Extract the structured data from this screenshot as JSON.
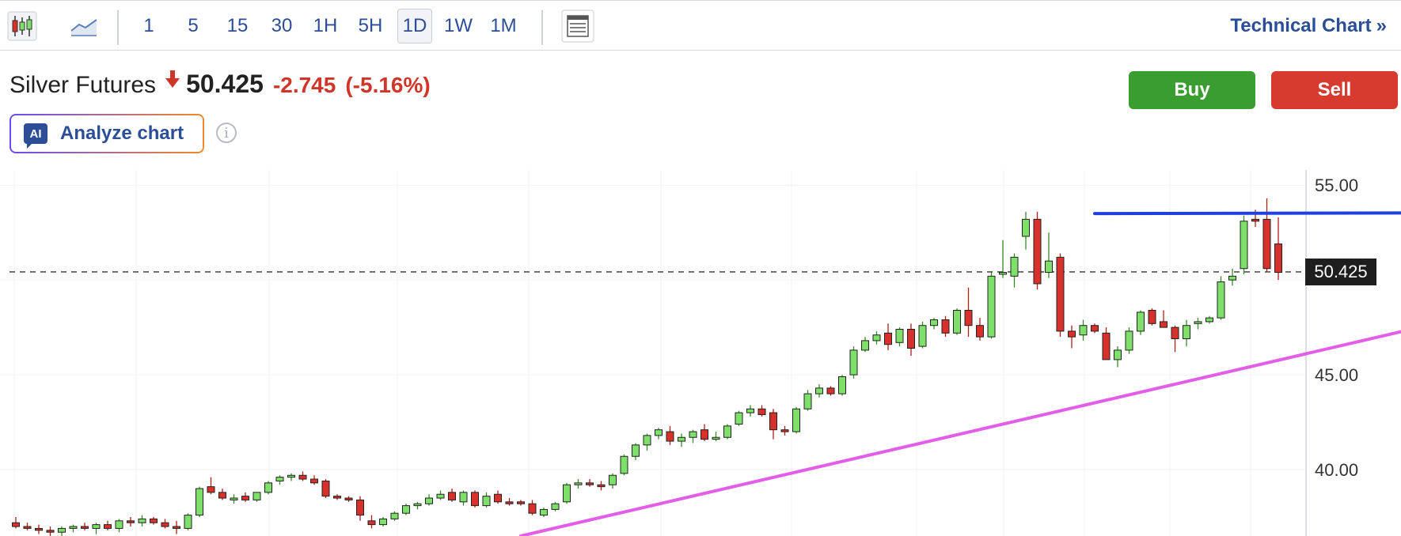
{
  "toolbar": {
    "icons": [
      "candlestick-chart-icon",
      "area-chart-icon",
      "layout-icon"
    ],
    "intervals": [
      "1",
      "5",
      "15",
      "30",
      "1H",
      "5H",
      "1D",
      "1W",
      "1M"
    ],
    "active_interval": "1D",
    "technical_link": "Technical Chart",
    "technical_chevron": "»"
  },
  "instrument": {
    "name": "Silver Futures",
    "price": "50.425",
    "change": "-2.745",
    "change_pct": "(-5.16%)",
    "direction": "down"
  },
  "actions": {
    "buy": "Buy",
    "sell": "Sell"
  },
  "analyze": {
    "badge": "AI",
    "label": "Analyze chart",
    "info": "i"
  },
  "colors": {
    "up": "#7ee06a",
    "down": "#d8302a",
    "resistance_line": "#1f3fe0",
    "support_line": "#e35ee8",
    "buy": "#3a9d2f",
    "sell": "#d73a2e",
    "link": "#2b4e96"
  },
  "chart_data": {
    "type": "candlestick",
    "interval": "1D",
    "yticks": [
      "55.00",
      "45.00",
      "40.00"
    ],
    "ylim": [
      36.5,
      55.8
    ],
    "last_price_label": "50.425",
    "grid": true,
    "trendlines": [
      {
        "name": "resistance",
        "color": "#1f3fe0",
        "start": [
          94,
          53.5
        ],
        "end": [
          136,
          53.55
        ]
      },
      {
        "name": "support",
        "color": "#e35ee8",
        "start": [
          44,
          36.5
        ],
        "end": [
          133,
          49.0
        ]
      }
    ],
    "candles": [
      [
        37.2,
        37.5,
        36.9,
        37.0
      ],
      [
        37.0,
        37.2,
        36.8,
        36.9
      ],
      [
        36.9,
        37.1,
        36.6,
        36.8
      ],
      [
        36.8,
        37.0,
        36.5,
        36.7
      ],
      [
        36.7,
        37.0,
        36.4,
        36.9
      ],
      [
        36.9,
        37.1,
        36.7,
        37.0
      ],
      [
        37.0,
        37.2,
        36.8,
        36.9
      ],
      [
        36.9,
        37.2,
        36.6,
        37.1
      ],
      [
        37.1,
        37.3,
        36.8,
        36.9
      ],
      [
        36.9,
        37.4,
        36.7,
        37.3
      ],
      [
        37.3,
        37.5,
        37.0,
        37.2
      ],
      [
        37.2,
        37.6,
        37.0,
        37.4
      ],
      [
        37.4,
        37.5,
        37.1,
        37.2
      ],
      [
        37.2,
        37.4,
        36.9,
        37.0
      ],
      [
        37.0,
        37.3,
        36.6,
        36.9
      ],
      [
        36.9,
        37.7,
        36.8,
        37.6
      ],
      [
        37.6,
        39.1,
        37.5,
        39.0
      ],
      [
        39.1,
        39.6,
        38.7,
        38.8
      ],
      [
        38.8,
        39.0,
        38.4,
        38.5
      ],
      [
        38.4,
        38.7,
        38.2,
        38.5
      ],
      [
        38.6,
        38.8,
        38.3,
        38.4
      ],
      [
        38.4,
        38.8,
        38.3,
        38.8
      ],
      [
        38.8,
        39.4,
        38.7,
        39.3
      ],
      [
        39.4,
        39.7,
        39.2,
        39.6
      ],
      [
        39.6,
        39.8,
        39.4,
        39.7
      ],
      [
        39.7,
        39.9,
        39.4,
        39.5
      ],
      [
        39.5,
        39.7,
        39.2,
        39.3
      ],
      [
        39.4,
        39.5,
        38.5,
        38.6
      ],
      [
        38.6,
        38.7,
        38.4,
        38.5
      ],
      [
        38.5,
        38.6,
        38.3,
        38.4
      ],
      [
        38.4,
        38.6,
        37.3,
        37.6
      ],
      [
        37.3,
        37.6,
        36.9,
        37.1
      ],
      [
        37.1,
        37.5,
        37.0,
        37.4
      ],
      [
        37.4,
        37.8,
        37.3,
        37.7
      ],
      [
        37.7,
        38.2,
        37.6,
        38.1
      ],
      [
        38.1,
        38.3,
        37.9,
        38.2
      ],
      [
        38.2,
        38.7,
        38.1,
        38.5
      ],
      [
        38.5,
        38.9,
        38.4,
        38.7
      ],
      [
        38.8,
        39.0,
        38.3,
        38.4
      ],
      [
        38.3,
        38.9,
        38.1,
        38.8
      ],
      [
        38.8,
        38.9,
        38.0,
        38.1
      ],
      [
        38.1,
        38.8,
        38.0,
        38.6
      ],
      [
        38.7,
        38.9,
        38.2,
        38.3
      ],
      [
        38.3,
        38.5,
        38.1,
        38.2
      ],
      [
        38.3,
        38.4,
        38.1,
        38.2
      ],
      [
        38.2,
        38.4,
        37.6,
        37.7
      ],
      [
        37.6,
        38.0,
        37.5,
        37.9
      ],
      [
        37.9,
        38.3,
        37.8,
        38.2
      ],
      [
        38.3,
        39.3,
        38.2,
        39.2
      ],
      [
        39.2,
        39.5,
        39.0,
        39.3
      ],
      [
        39.3,
        39.5,
        39.1,
        39.2
      ],
      [
        39.2,
        39.4,
        38.9,
        39.1
      ],
      [
        39.2,
        39.8,
        39.0,
        39.7
      ],
      [
        39.8,
        40.8,
        39.7,
        40.7
      ],
      [
        40.7,
        41.4,
        40.5,
        41.3
      ],
      [
        41.3,
        41.9,
        41.0,
        41.8
      ],
      [
        41.8,
        42.2,
        41.6,
        42.1
      ],
      [
        42.0,
        42.3,
        41.3,
        41.5
      ],
      [
        41.5,
        41.9,
        41.2,
        41.7
      ],
      [
        41.7,
        42.1,
        41.4,
        42.0
      ],
      [
        42.1,
        42.4,
        41.5,
        41.6
      ],
      [
        41.6,
        42.0,
        41.5,
        41.7
      ],
      [
        41.7,
        42.4,
        41.6,
        42.3
      ],
      [
        42.4,
        43.1,
        42.3,
        43.0
      ],
      [
        43.0,
        43.4,
        42.8,
        43.2
      ],
      [
        43.2,
        43.4,
        42.8,
        42.9
      ],
      [
        43.0,
        43.2,
        41.6,
        42.1
      ],
      [
        42.1,
        42.3,
        41.8,
        42.0
      ],
      [
        42.0,
        43.3,
        41.9,
        43.2
      ],
      [
        43.2,
        44.2,
        43.1,
        44.0
      ],
      [
        44.0,
        44.5,
        43.8,
        44.3
      ],
      [
        44.3,
        44.4,
        43.9,
        44.0
      ],
      [
        44.0,
        45.0,
        43.9,
        44.9
      ],
      [
        45.0,
        46.5,
        44.8,
        46.3
      ],
      [
        46.3,
        47.0,
        46.2,
        46.8
      ],
      [
        46.8,
        47.3,
        46.6,
        47.1
      ],
      [
        47.2,
        47.7,
        46.3,
        46.6
      ],
      [
        46.7,
        47.5,
        46.5,
        47.4
      ],
      [
        47.4,
        47.7,
        46.0,
        46.4
      ],
      [
        46.5,
        47.8,
        46.4,
        47.6
      ],
      [
        47.6,
        48.0,
        47.4,
        47.9
      ],
      [
        47.9,
        48.1,
        47.0,
        47.2
      ],
      [
        47.2,
        48.5,
        47.1,
        48.4
      ],
      [
        48.4,
        49.6,
        47.0,
        47.6
      ],
      [
        47.6,
        48.0,
        46.8,
        47.0
      ],
      [
        47.0,
        50.4,
        46.9,
        50.2
      ],
      [
        50.3,
        52.1,
        50.1,
        50.4
      ],
      [
        50.2,
        51.4,
        49.6,
        51.2
      ],
      [
        52.3,
        53.6,
        51.6,
        53.2
      ],
      [
        53.2,
        53.6,
        49.5,
        49.8
      ],
      [
        50.4,
        52.5,
        50.1,
        51.0
      ],
      [
        51.2,
        51.4,
        47.0,
        47.3
      ],
      [
        47.3,
        47.6,
        46.4,
        47.0
      ],
      [
        47.1,
        47.9,
        46.8,
        47.6
      ],
      [
        47.6,
        47.7,
        47.2,
        47.3
      ],
      [
        47.2,
        47.5,
        45.8,
        45.8
      ],
      [
        45.8,
        46.5,
        45.4,
        46.3
      ],
      [
        46.3,
        47.5,
        46.1,
        47.3
      ],
      [
        47.3,
        48.4,
        47.1,
        48.3
      ],
      [
        48.4,
        48.5,
        47.6,
        47.7
      ],
      [
        47.8,
        48.4,
        47.5,
        47.5
      ],
      [
        47.5,
        47.6,
        46.2,
        46.9
      ],
      [
        46.9,
        47.9,
        46.5,
        47.6
      ],
      [
        47.7,
        48.0,
        47.4,
        47.8
      ],
      [
        47.8,
        48.1,
        47.7,
        48.0
      ],
      [
        48.0,
        50.2,
        47.9,
        49.9
      ],
      [
        50.0,
        50.6,
        49.7,
        50.2
      ],
      [
        50.6,
        53.4,
        50.3,
        53.1
      ],
      [
        53.2,
        53.7,
        52.8,
        53.1
      ],
      [
        53.2,
        54.3,
        50.4,
        50.6
      ],
      [
        51.9,
        53.3,
        50.0,
        50.4
      ]
    ]
  }
}
